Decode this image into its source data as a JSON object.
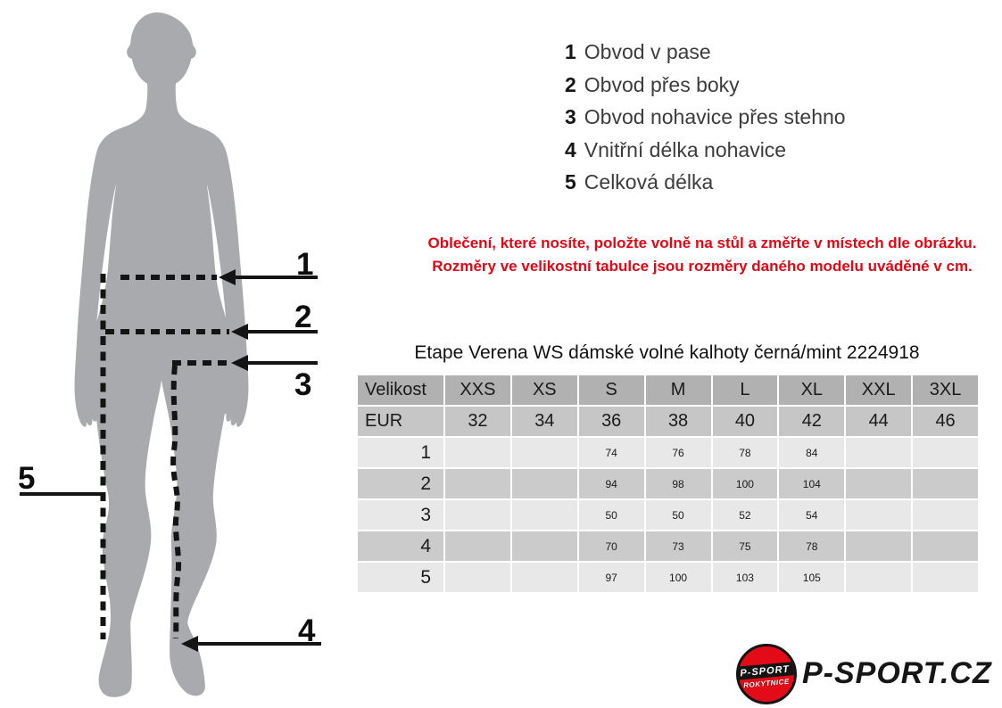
{
  "figure": {
    "markers": {
      "m1": "1",
      "m2": "2",
      "m3": "3",
      "m4": "4",
      "m5": "5"
    },
    "silhouette_color": "#a9aaad",
    "line_color": "#141414"
  },
  "legend": {
    "items": [
      {
        "num": "1",
        "label": "Obvod v pase"
      },
      {
        "num": "2",
        "label": "Obvod přes boky"
      },
      {
        "num": "3",
        "label": "Obvod nohavice přes stehno"
      },
      {
        "num": "4",
        "label": "Vnitřní délka nohavice"
      },
      {
        "num": "5",
        "label": "Celková délka"
      }
    ]
  },
  "note": {
    "line1": "Oblečení, které nosíte, položte volně na stůl a změřte v místech dle obrázku.",
    "line2": "Rozměry ve velikostní tabulce jsou rozměry daného modelu uváděné v cm.",
    "color": "#e30613"
  },
  "size_table": {
    "title": "Etape Verena WS dámské volné kalhoty černá/mint 2224918",
    "header_label": "Velikost",
    "eur_label": "EUR",
    "sizes": [
      "XXS",
      "XS",
      "S",
      "M",
      "L",
      "XL",
      "XXL",
      "3XL"
    ],
    "eur_values": [
      "32",
      "34",
      "36",
      "38",
      "40",
      "42",
      "44",
      "46"
    ],
    "rows": [
      {
        "num": "1",
        "values": [
          "",
          "",
          "74",
          "76",
          "78",
          "84",
          "",
          ""
        ]
      },
      {
        "num": "2",
        "values": [
          "",
          "",
          "94",
          "98",
          "100",
          "104",
          "",
          ""
        ]
      },
      {
        "num": "3",
        "values": [
          "",
          "",
          "50",
          "50",
          "52",
          "54",
          "",
          ""
        ]
      },
      {
        "num": "4",
        "values": [
          "",
          "",
          "70",
          "73",
          "75",
          "78",
          "",
          ""
        ]
      },
      {
        "num": "5",
        "values": [
          "",
          "",
          "97",
          "100",
          "103",
          "105",
          "",
          ""
        ]
      }
    ],
    "colors": {
      "header_bg": "#b1b1b1",
      "eur_bg": "#c6c6c6",
      "row_odd": "#e8e8e8",
      "row_even": "#cbcbcb"
    }
  },
  "logo": {
    "badge_top": "P-SPORT",
    "badge_bottom": "ROKYTNICE",
    "brand_text": "P-SPORT.CZ",
    "red": "#e30b17"
  }
}
